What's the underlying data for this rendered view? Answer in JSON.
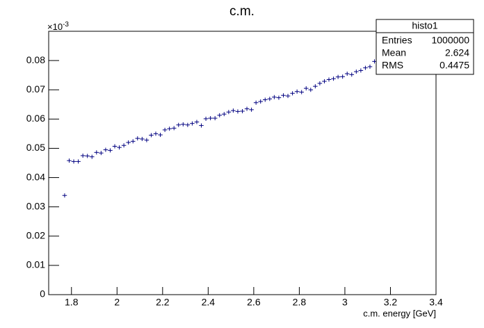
{
  "chart_data": {
    "type": "scatter",
    "title": "c.m.",
    "x_label": "c.m. energy [GeV]",
    "y_multiplier": {
      "base": "×10",
      "exponent": "-3"
    },
    "x": [
      1.77,
      1.79,
      1.81,
      1.83,
      1.85,
      1.87,
      1.89,
      1.91,
      1.93,
      1.95,
      1.97,
      1.99,
      2.01,
      2.03,
      2.05,
      2.07,
      2.09,
      2.11,
      2.13,
      2.15,
      2.17,
      2.19,
      2.21,
      2.23,
      2.25,
      2.27,
      2.29,
      2.31,
      2.33,
      2.35,
      2.37,
      2.39,
      2.41,
      2.43,
      2.45,
      2.47,
      2.49,
      2.51,
      2.53,
      2.55,
      2.57,
      2.59,
      2.61,
      2.63,
      2.65,
      2.67,
      2.69,
      2.71,
      2.73,
      2.75,
      2.77,
      2.79,
      2.81,
      2.83,
      2.85,
      2.87,
      2.89,
      2.91,
      2.93,
      2.95,
      2.97,
      2.99,
      3.01,
      3.03,
      3.05,
      3.07,
      3.09,
      3.11,
      3.13
    ],
    "series": [
      {
        "name": "histo1",
        "color": "#000080",
        "values": [
          0.0339,
          0.0458,
          0.0455,
          0.0455,
          0.0475,
          0.0474,
          0.0471,
          0.0486,
          0.0484,
          0.0495,
          0.0493,
          0.0507,
          0.0503,
          0.051,
          0.052,
          0.0524,
          0.0534,
          0.0532,
          0.0528,
          0.0545,
          0.055,
          0.0546,
          0.0563,
          0.0567,
          0.0569,
          0.058,
          0.0582,
          0.058,
          0.0585,
          0.059,
          0.0578,
          0.0601,
          0.0603,
          0.0603,
          0.0613,
          0.0617,
          0.0624,
          0.0629,
          0.0626,
          0.0627,
          0.0635,
          0.0632,
          0.0656,
          0.066,
          0.0666,
          0.0669,
          0.0675,
          0.0673,
          0.0681,
          0.0679,
          0.0688,
          0.0694,
          0.0692,
          0.0705,
          0.07,
          0.0712,
          0.0722,
          0.0729,
          0.0735,
          0.0738,
          0.0744,
          0.0745,
          0.0755,
          0.0752,
          0.0762,
          0.0766,
          0.0775,
          0.0779,
          0.0797
        ]
      }
    ],
    "xlim": [
      1.7,
      3.4
    ],
    "xticks": [
      1.8,
      2,
      2.2,
      2.4,
      2.6,
      2.8,
      3,
      3.2,
      3.4
    ],
    "ylim": [
      0,
      0.09
    ],
    "yticks": [
      0,
      0.01,
      0.02,
      0.03,
      0.04,
      0.05,
      0.06,
      0.07,
      0.08
    ],
    "stats": {
      "title": "histo1",
      "rows": [
        [
          "Entries",
          1000000
        ],
        [
          "Mean",
          2.624
        ],
        [
          "RMS",
          0.4475
        ]
      ]
    }
  }
}
